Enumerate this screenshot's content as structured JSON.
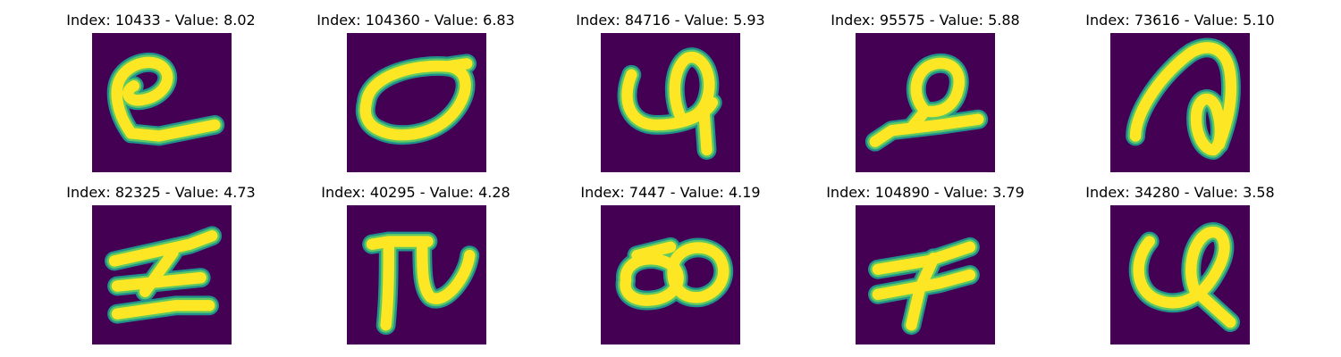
{
  "colors": {
    "background": "#440154",
    "ink_core": "#fde725",
    "ink_mid": "#5ec962",
    "ink_edge": "#21918c"
  },
  "panels": [
    {
      "title": "Index: 10433 - Value: 8.02",
      "glyph": "loop-with-tail"
    },
    {
      "title": "Index: 104360 - Value: 6.83",
      "glyph": "oval-loop"
    },
    {
      "title": "Index: 84716 - Value: 5.93",
      "glyph": "u-with-loop"
    },
    {
      "title": "Index: 95575 - Value: 5.88",
      "glyph": "loop-with-base"
    },
    {
      "title": "Index: 73616 - Value: 5.10",
      "glyph": "hook-with-loop"
    },
    {
      "title": "Index: 82325 - Value: 4.73",
      "glyph": "crossed-z"
    },
    {
      "title": "Index: 40295 - Value: 4.28",
      "glyph": "pi-tail"
    },
    {
      "title": "Index: 7447 - Value: 4.19",
      "glyph": "double-loop"
    },
    {
      "title": "Index: 104890 - Value: 3.79",
      "glyph": "crossed-f"
    },
    {
      "title": "Index: 34280 - Value: 3.58",
      "glyph": "u-loop-tail"
    }
  ]
}
